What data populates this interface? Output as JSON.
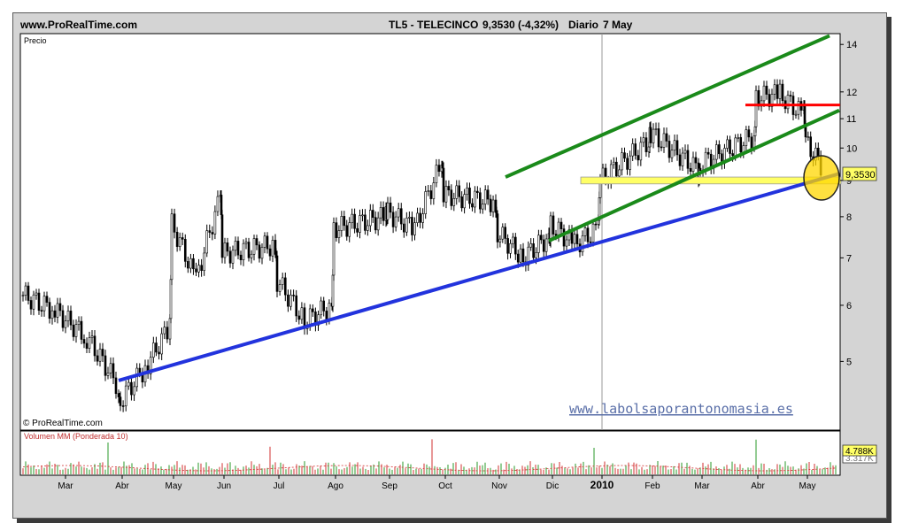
{
  "header": {
    "site": "www.ProRealTime.com",
    "instrument": "TL5 - TELECINCO",
    "price_change": "9,3530 (-4,32%)",
    "period": "Diario",
    "date": "7 May"
  },
  "main_panel": {
    "label": "Precio",
    "copyright": "© ProRealTime.com",
    "watermark": "www.labolsaporantonomasia.es",
    "current_price_tag": "9,3530"
  },
  "volume_panel": {
    "label": "Volumen MM (Ponderada 10)",
    "value_tag": "4.788K",
    "ma_tag": "3.317K"
  },
  "chart_data": {
    "type": "line",
    "price_axis": {
      "scale": "log",
      "range": [
        4.0,
        14.5
      ],
      "ticks": [
        "14",
        "12",
        "11",
        "10",
        "9",
        "8",
        "7",
        "6",
        "5"
      ]
    },
    "x_axis": {
      "ticks": [
        "Mar",
        "Abr",
        "May",
        "Jun",
        "Jul",
        "Ago",
        "Sep",
        "Oct",
        "Nov",
        "Dic",
        "2010",
        "Feb",
        "Mar",
        "Abr",
        "May"
      ]
    },
    "series": [
      {
        "months": [
          "Mar",
          "Mar",
          "Mar",
          "Mar",
          "Abr",
          "Abr",
          "Abr",
          "May",
          "May",
          "May",
          "Jun",
          "Jun",
          "Jul",
          "Jul",
          "Jul",
          "Ago",
          "Ago",
          "Sep",
          "Sep",
          "Sep",
          "Oct",
          "Oct",
          "Nov",
          "Nov",
          "Nov",
          "Dic",
          "Dic",
          "Dic",
          "2010",
          "2010",
          "Feb",
          "Feb",
          "Mar",
          "Mar",
          "Abr",
          "Abr",
          "Abr",
          "May",
          "May"
        ],
        "values": [
          6.2,
          5.9,
          5.4,
          4.6,
          4.4,
          4.9,
          5.6,
          7.8,
          6.5,
          8.5,
          7.1,
          7.3,
          6.5,
          5.7,
          6.0,
          7.7,
          8.0,
          8.1,
          7.7,
          9.5,
          8.6,
          8.4,
          7.6,
          7.0,
          7.5,
          7.8,
          7.3,
          7.7,
          9.0,
          10.2,
          10.5,
          9.3,
          9.5,
          10.4,
          11.8,
          11.9,
          11.1,
          10.2,
          9.35
        ]
      }
    ],
    "overlays": {
      "channel_upper": {
        "color": "#1a8a1a",
        "from": [
          "Nov",
          9.1
        ],
        "to": [
          "May",
          14.4
        ]
      },
      "channel_lower": {
        "color": "#1a8a1a",
        "from": [
          "Dic",
          7.4
        ],
        "to": [
          "May",
          11.3
        ]
      },
      "support_trendline": {
        "color": "#2233dd",
        "from": [
          "Abr",
          4.7
        ],
        "to": [
          "May",
          9.2
        ]
      },
      "resistance": {
        "color": "#ff0000",
        "level": 11.5
      },
      "support_zone": {
        "color": "#ffff66",
        "range": [
          8.9,
          9.1
        ]
      },
      "highlight_circle": {
        "color": "#ffd700"
      }
    },
    "volume": {
      "label": "Volumen MM (Ponderada 10)"
    }
  }
}
